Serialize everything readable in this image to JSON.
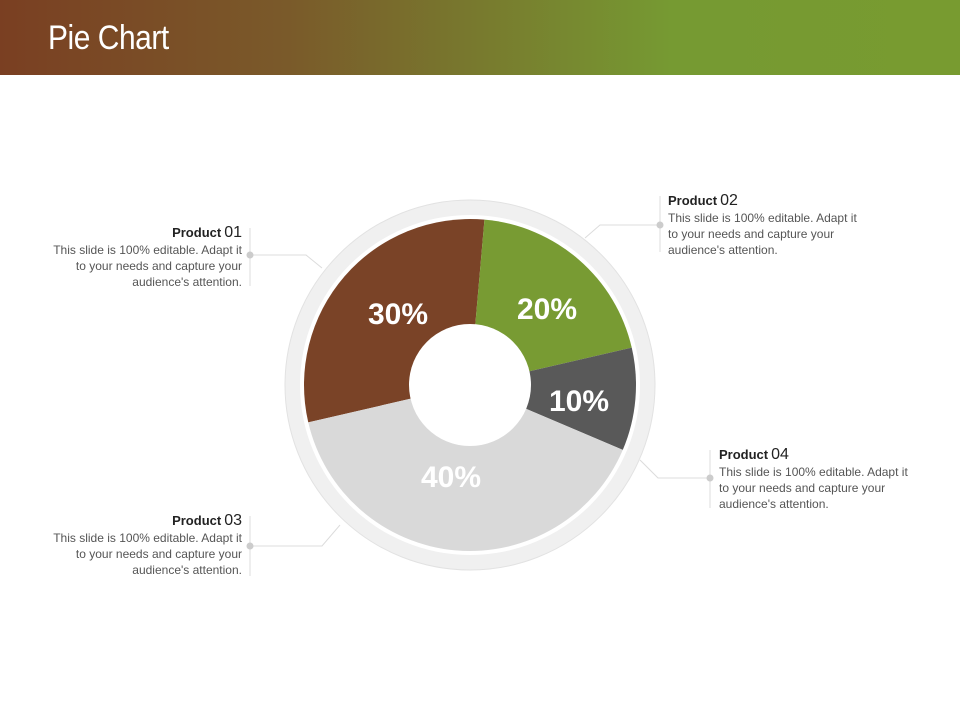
{
  "header": {
    "title": "Pie Chart"
  },
  "colors": {
    "header_start": "#7a3f22",
    "header_end": "#789b30",
    "ring": "#eeeeee"
  },
  "chart_data": {
    "type": "pie",
    "donut": true,
    "categories": [
      "Product 01",
      "Product 02",
      "Product 04",
      "Product 03"
    ],
    "values": [
      30,
      20,
      10,
      40
    ],
    "labels": [
      "30%",
      "20%",
      "10%",
      "40%"
    ],
    "colors": [
      "#7a4327",
      "#789b33",
      "#595959",
      "#d9d9d9"
    ],
    "label_colors": [
      "#ffffff",
      "#ffffff",
      "#ffffff",
      "#ffffff"
    ]
  },
  "callouts": [
    {
      "id": "p01",
      "title": "Product",
      "number": "01",
      "text": "This slide is 100% editable. Adapt it to your needs and capture your audience's attention."
    },
    {
      "id": "p02",
      "title": "Product",
      "number": "02",
      "text": "This slide is 100% editable. Adapt it to your needs and capture your audience's attention."
    },
    {
      "id": "p03",
      "title": "Product",
      "number": "03",
      "text": "This slide is 100% editable. Adapt it to your needs and capture your audience's attention."
    },
    {
      "id": "p04",
      "title": "Product",
      "number": "04",
      "text": "This slide is 100% editable. Adapt it to your needs and capture your audience's attention."
    }
  ]
}
